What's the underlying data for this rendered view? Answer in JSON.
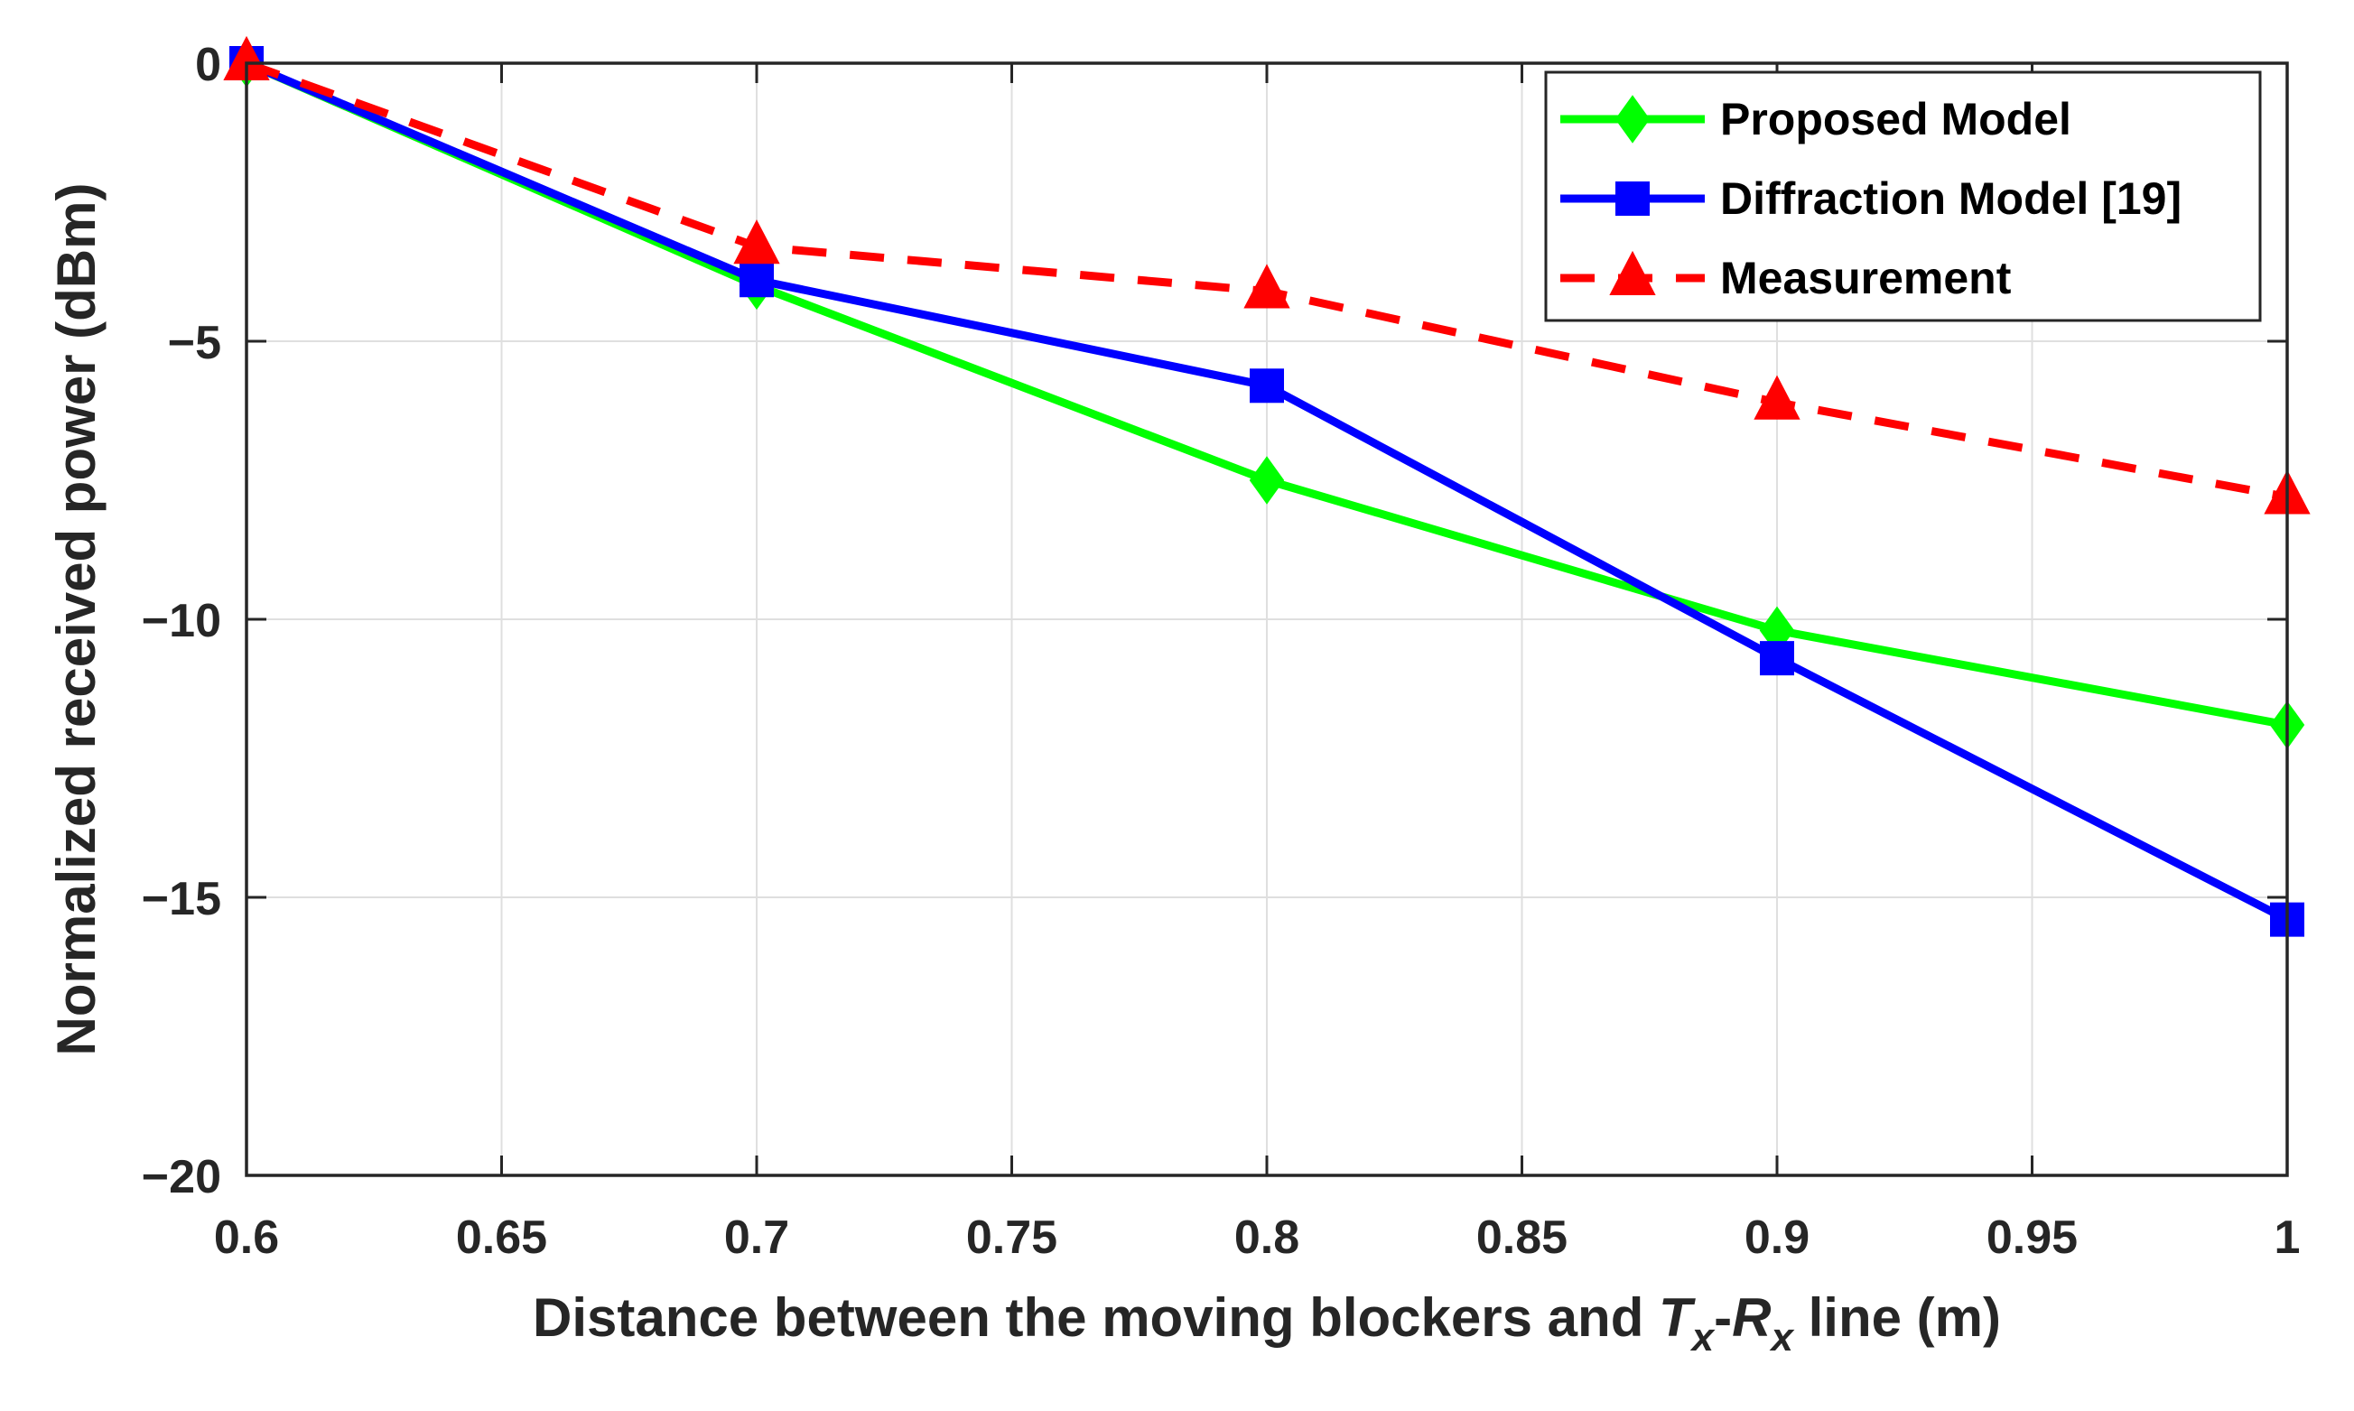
{
  "chart_data": {
    "type": "line",
    "title": "",
    "xlabel": {
      "prefix": "Distance between the moving blockers and ",
      "t": "T",
      "tsub": "x",
      "dash": "-",
      "r": "R",
      "rsub": "x",
      "suffix": " line (m)"
    },
    "ylabel": "Normalized received power (dBm)",
    "xlim": [
      0.6,
      1.0
    ],
    "ylim": [
      -20,
      0
    ],
    "xticks": [
      0.6,
      0.65,
      0.7,
      0.75,
      0.8,
      0.85,
      0.9,
      0.95,
      1.0
    ],
    "xtick_labels": [
      "0.6",
      "0.65",
      "0.7",
      "0.75",
      "0.8",
      "0.85",
      "0.9",
      "0.95",
      "1"
    ],
    "yticks": [
      0,
      -5,
      -10,
      -15,
      -20
    ],
    "ytick_labels": [
      "0",
      "−5",
      "−10",
      "−15",
      "−20"
    ],
    "grid": true,
    "legend_position": "top-right",
    "x": [
      0.6,
      0.7,
      0.8,
      0.9,
      1.0
    ],
    "series": [
      {
        "name": "Proposed Model",
        "color": "#00ff00",
        "marker": "diamond",
        "dash": false,
        "values": [
          0,
          -4.0,
          -7.5,
          -10.2,
          -11.9
        ]
      },
      {
        "name": "Diffraction Model [19]",
        "color": "#0000ff",
        "marker": "square",
        "dash": false,
        "values": [
          0,
          -3.9,
          -5.8,
          -10.7,
          -15.4
        ]
      },
      {
        "name": "Measurement",
        "color": "#ff0000",
        "marker": "triangle",
        "dash": true,
        "values": [
          0,
          -3.3,
          -4.1,
          -6.1,
          -7.8
        ]
      }
    ]
  }
}
